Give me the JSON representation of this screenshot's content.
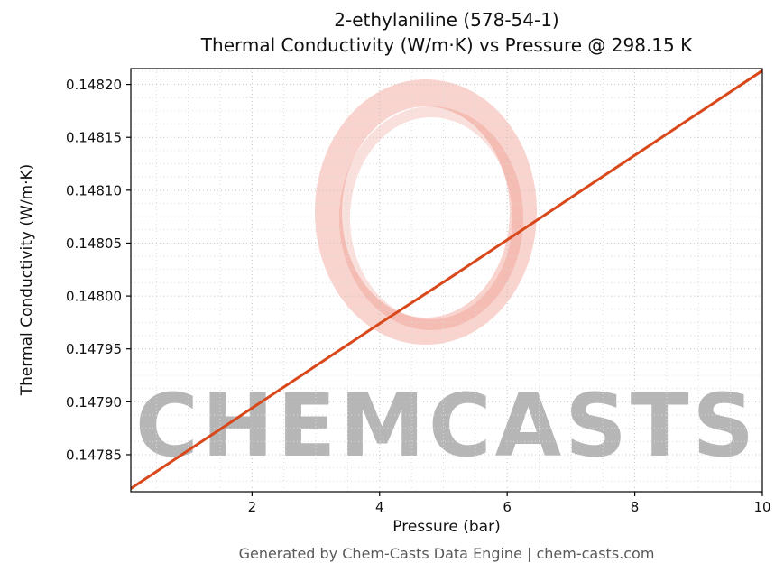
{
  "titles": {
    "line1": "2-ethylaniline (578-54-1)",
    "line2": "Thermal Conductivity (W/m·K) vs Pressure @ 298.15 K"
  },
  "footer": "Generated by Chem-Casts Data Engine | chem-casts.com",
  "watermark": {
    "text": "CHEMCASTS",
    "color": "#e8604c",
    "text_opacity": 0.3,
    "ring_opacity": 0.28
  },
  "chart_data": {
    "type": "line",
    "title": "2-ethylaniline (578-54-1) Thermal Conductivity (W/m·K) vs Pressure @ 298.15 K",
    "xlabel": "Pressure (bar)",
    "ylabel": "Thermal Conductivity (W/m·K)",
    "xlim": [
      0.1,
      10
    ],
    "ylim": [
      0.147815,
      0.148215
    ],
    "x_ticks": [
      2,
      4,
      6,
      8,
      10
    ],
    "x_tick_labels": [
      "2",
      "4",
      "6",
      "8",
      "10"
    ],
    "y_ticks": [
      0.14785,
      0.1479,
      0.14795,
      0.148,
      0.14805,
      0.1481,
      0.14815,
      0.1482
    ],
    "y_tick_labels": [
      "0.14785",
      "0.14790",
      "0.14795",
      "0.14800",
      "0.14805",
      "0.14810",
      "0.14815",
      "0.14820"
    ],
    "x_minor_step": 0.5,
    "y_minor_step": 1.25e-05,
    "grid": true,
    "legend": "none",
    "series": [
      {
        "name": "thermal_conductivity",
        "color": "#d9481b",
        "x": [
          0.1,
          1,
          2,
          3,
          4,
          5,
          6,
          7,
          8,
          9,
          10
        ],
        "y": [
          0.147818,
          0.147854,
          0.147894,
          0.147934,
          0.147974,
          0.148013,
          0.148053,
          0.148093,
          0.148133,
          0.148173,
          0.148213
        ]
      }
    ]
  }
}
